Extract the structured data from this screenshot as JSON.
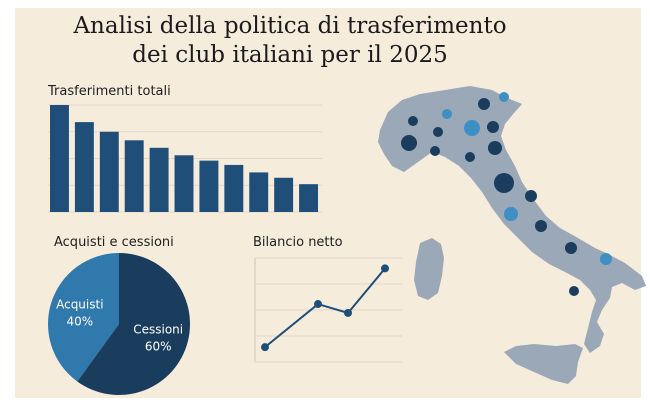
{
  "title": {
    "line1": "Analisi della politica di trasferimento",
    "line2": "dei club italiani per il 2025"
  },
  "colors": {
    "background": "#f6ecdc",
    "navy": "#1f4e79",
    "dark_navy": "#1a3d5e",
    "steel_blue": "#2f79ad",
    "map_gray": "#9ba8b7",
    "dot_light": "#3d8fc4"
  },
  "chart_data": [
    {
      "type": "bar",
      "title": "Trasferimenti totali",
      "categories": [
        "",
        "",
        "",
        "",
        "",
        "",
        "",
        "",
        "",
        "",
        ""
      ],
      "values": [
        100,
        84,
        75,
        67,
        60,
        53,
        48,
        44,
        37,
        32,
        26
      ],
      "ylim": [
        0,
        100
      ],
      "grid": true,
      "color": "#1f4e79"
    },
    {
      "type": "pie",
      "title": "Acquisti e cessioni",
      "slices": [
        {
          "label": "Acquisti",
          "pct_label": "40%",
          "value": 40,
          "color": "#2f79ad"
        },
        {
          "label": "Cessioni",
          "pct_label": "60%",
          "value": 60,
          "color": "#1a3d5e"
        }
      ]
    },
    {
      "type": "line",
      "title": "Bilancio netto",
      "values": [
        1,
        3.9,
        3.3,
        6.3
      ],
      "ylim": [
        0,
        7
      ],
      "grid": true,
      "color": "#1f4e79"
    }
  ],
  "map": {
    "cities": [
      {
        "shade": "dark"
      },
      {
        "shade": "light"
      },
      {
        "shade": "dark"
      },
      {
        "shade": "light"
      },
      {
        "shade": "dark"
      },
      {
        "shade": "light"
      },
      {
        "shade": "dark"
      },
      {
        "shade": "dark"
      },
      {
        "shade": "dark"
      },
      {
        "shade": "dark"
      },
      {
        "shade": "dark"
      },
      {
        "shade": "dark"
      },
      {
        "shade": "dark"
      },
      {
        "shade": "light"
      },
      {
        "shade": "dark"
      },
      {
        "shade": "dark"
      },
      {
        "shade": "dark"
      },
      {
        "shade": "light"
      }
    ]
  }
}
